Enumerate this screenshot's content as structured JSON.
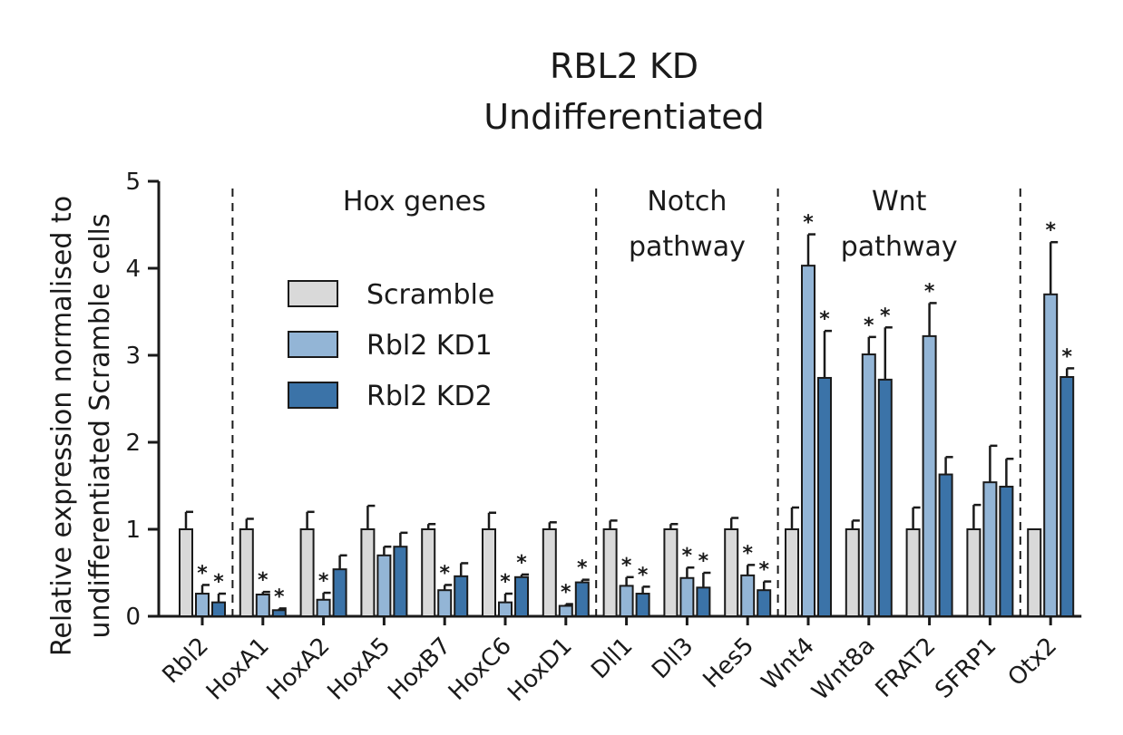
{
  "chart_data": {
    "type": "bar",
    "title": [
      "RBL2 KD",
      "Undifferentiated"
    ],
    "ylabel": [
      "Relative expression normalised to",
      "undifferentiated Scramble cells"
    ],
    "xlabel": "",
    "ylim": [
      0,
      5
    ],
    "yticks": [
      0,
      1,
      2,
      3,
      4,
      5
    ],
    "categories": [
      "Rbl2",
      "HoxA1",
      "HoxA2",
      "HoxA5",
      "HoxB7",
      "HoxC6",
      "HoxD1",
      "Dll1",
      "Dll3",
      "Hes5",
      "Wnt4",
      "Wnt8a",
      "FRAT2",
      "SFRP1",
      "Otx2"
    ],
    "series": [
      {
        "name": "Scramble",
        "color": "#d9d9d9",
        "values": [
          1.0,
          1.0,
          1.0,
          1.0,
          1.0,
          1.0,
          1.0,
          1.0,
          1.0,
          1.0,
          1.0,
          1.0,
          1.0,
          1.0,
          1.0
        ],
        "errors": [
          0.2,
          0.12,
          0.2,
          0.27,
          0.06,
          0.19,
          0.08,
          0.1,
          0.06,
          0.13,
          0.25,
          0.1,
          0.25,
          0.28,
          0.0
        ],
        "significant": [
          false,
          false,
          false,
          false,
          false,
          false,
          false,
          false,
          false,
          false,
          false,
          false,
          false,
          false,
          false
        ]
      },
      {
        "name": "Rbl2 KD1",
        "color": "#93b5d6",
        "values": [
          0.26,
          0.25,
          0.19,
          0.7,
          0.3,
          0.16,
          0.12,
          0.35,
          0.44,
          0.47,
          4.03,
          3.01,
          3.22,
          1.54,
          3.7
        ],
        "errors": [
          0.1,
          0.03,
          0.08,
          0.1,
          0.06,
          0.1,
          0.02,
          0.1,
          0.12,
          0.12,
          0.36,
          0.2,
          0.38,
          0.42,
          0.6
        ],
        "significant": [
          true,
          true,
          true,
          false,
          true,
          true,
          true,
          true,
          true,
          true,
          true,
          true,
          true,
          false,
          true
        ]
      },
      {
        "name": "Rbl2 KD2",
        "color": "#3b73a8",
        "values": [
          0.16,
          0.07,
          0.54,
          0.8,
          0.46,
          0.45,
          0.39,
          0.26,
          0.33,
          0.3,
          2.74,
          2.72,
          1.63,
          1.49,
          2.75
        ],
        "errors": [
          0.1,
          0.02,
          0.16,
          0.16,
          0.15,
          0.03,
          0.03,
          0.08,
          0.17,
          0.1,
          0.54,
          0.6,
          0.2,
          0.32,
          0.1
        ],
        "significant": [
          true,
          true,
          false,
          false,
          false,
          true,
          true,
          true,
          true,
          true,
          true,
          true,
          false,
          false,
          true
        ]
      }
    ],
    "groups": [
      {
        "lines": [
          "Hox genes"
        ],
        "start": 1,
        "end": 6
      },
      {
        "lines": [
          "Notch",
          "pathway"
        ],
        "start": 7,
        "end": 9
      },
      {
        "lines": [
          "Wnt",
          "pathway"
        ],
        "start": 10,
        "end": 13
      }
    ],
    "dividers_after": [
      0,
      6,
      9,
      13
    ],
    "significance_marker": "*",
    "legend": {
      "placement": "upper-left",
      "entries": [
        "Scramble",
        "Rbl2 KD1",
        "Rbl2 KD2"
      ]
    },
    "grid": false
  }
}
